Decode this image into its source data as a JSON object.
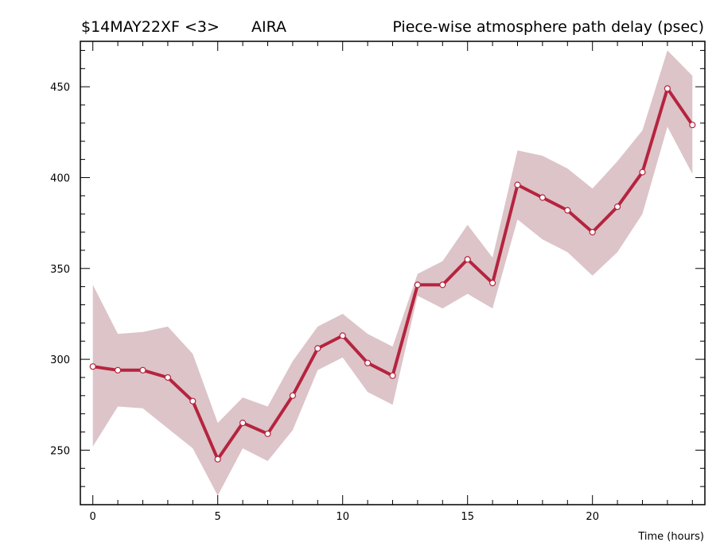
{
  "header": {
    "source_id": "$14MAY22XF <3>",
    "station": "AIRA",
    "title": "Piece-wise atmosphere path delay (psec)"
  },
  "chart_data": {
    "type": "line",
    "title": "Piece-wise atmosphere path delay (psec)",
    "xlabel": "Time (hours)",
    "ylabel": "",
    "xlim": [
      -0.5,
      24.5
    ],
    "ylim": [
      220,
      475
    ],
    "xticks": [
      0,
      5,
      10,
      15,
      20
    ],
    "yticks": [
      250,
      300,
      350,
      400,
      450
    ],
    "grid": false,
    "colors": {
      "line": "#b5243f",
      "band": "#dcc4c8",
      "marker_fill": "#ffffff"
    },
    "x": [
      0,
      1,
      2,
      3,
      4,
      5,
      6,
      7,
      8,
      9,
      10,
      11,
      12,
      13,
      14,
      15,
      16,
      17,
      18,
      19,
      20,
      21,
      22,
      23,
      24
    ],
    "values": [
      296,
      294,
      294,
      290,
      277,
      245,
      265,
      259,
      280,
      306,
      313,
      298,
      291,
      341,
      341,
      355,
      342,
      396,
      389,
      382,
      370,
      384,
      403,
      449,
      429
    ],
    "upper": [
      341,
      314,
      315,
      318,
      303,
      265,
      279,
      274,
      299,
      318,
      325,
      314,
      307,
      347,
      354,
      374,
      356,
      415,
      412,
      405,
      394,
      409,
      426,
      470,
      456
    ],
    "lower": [
      252,
      274,
      273,
      262,
      251,
      225,
      251,
      244,
      261,
      294,
      301,
      282,
      275,
      335,
      328,
      336,
      328,
      377,
      366,
      359,
      346,
      359,
      380,
      428,
      402
    ]
  }
}
